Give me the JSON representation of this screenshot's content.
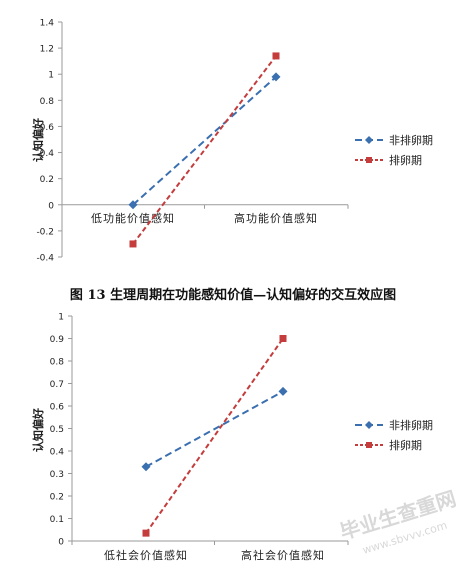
{
  "figure_caption": "图 13 生理周期在功能感知价值—认知偏好的交互效应图",
  "watermark": {
    "text": "毕业生查重网",
    "url": "www.sbvvv.com"
  },
  "colors": {
    "non_ovulation": "#3a6fb0",
    "ovulation": "#c43c3c",
    "axis": "#9a9a9a",
    "text": "#222222"
  },
  "chart_data": [
    {
      "type": "line",
      "title": "",
      "xlabel": "",
      "ylabel": "认知偏好",
      "categories": [
        "低功能价值感知",
        "高功能价值感知"
      ],
      "ylim": [
        -0.4,
        1.4
      ],
      "yticks": [
        -0.4,
        -0.2,
        0,
        0.2,
        0.4,
        0.6,
        0.8,
        1,
        1.2,
        1.4
      ],
      "grid": false,
      "legend": "right",
      "series": [
        {
          "name": "非排卵期",
          "values": [
            0.0,
            0.98
          ],
          "marker": "diamond",
          "color": "#3a6fb0"
        },
        {
          "name": "排卵期",
          "values": [
            -0.3,
            1.14
          ],
          "marker": "square",
          "color": "#c43c3c"
        }
      ]
    },
    {
      "type": "line",
      "title": "",
      "xlabel": "",
      "ylabel": "认知偏好",
      "categories": [
        "低社会价值感知",
        "高社会价值感知"
      ],
      "ylim": [
        0,
        1
      ],
      "yticks": [
        0,
        0.1,
        0.2,
        0.3,
        0.4,
        0.5,
        0.6,
        0.7,
        0.8,
        0.9,
        1
      ],
      "grid": false,
      "legend": "right",
      "series": [
        {
          "name": "非排卵期",
          "values": [
            0.33,
            0.665
          ],
          "marker": "diamond",
          "color": "#3a6fb0"
        },
        {
          "name": "排卵期",
          "values": [
            0.035,
            0.9
          ],
          "marker": "square",
          "color": "#c43c3c"
        }
      ]
    }
  ]
}
